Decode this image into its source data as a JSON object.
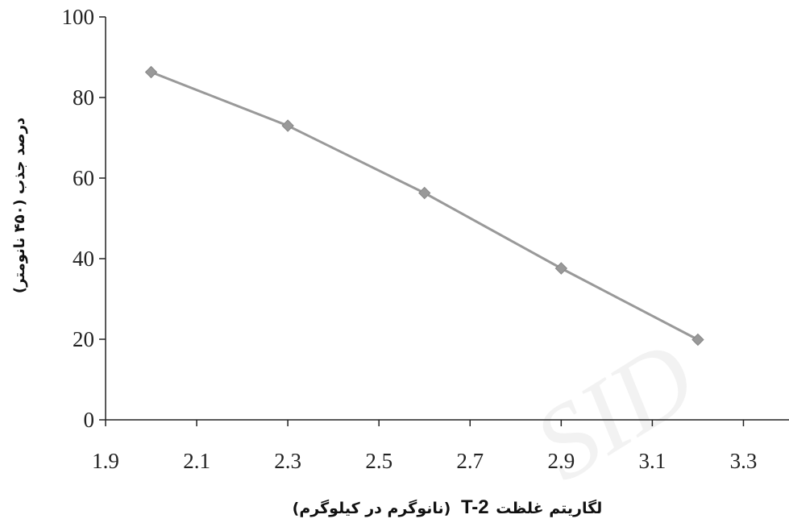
{
  "chart_data": {
    "type": "line",
    "title": "",
    "xlabel": "لگاریتم غلظت T-2 (نانوگرم در کیلوگرم)",
    "xlabel_rtl_text": "لگاریتم غلظت",
    "xlabel_latin_text": "T-2",
    "xlabel_units_text": "(نانوگرم در کیلوگرم)",
    "ylabel": "درصد جذب (۴۵۰ نانومتر)",
    "xlim": [
      1.9,
      3.4
    ],
    "ylim": [
      0,
      100
    ],
    "x_ticks": [
      1.9,
      2.1,
      2.3,
      2.5,
      2.7,
      2.9,
      3.1,
      3.3
    ],
    "x_tick_labels": [
      "1.9",
      "2.1",
      "2.3",
      "2.5",
      "2.7",
      "2.9",
      "3.1",
      "3.3"
    ],
    "y_ticks": [
      0,
      20,
      40,
      60,
      80,
      100
    ],
    "y_tick_labels": [
      "0",
      "20",
      "40",
      "60",
      "80",
      "100"
    ],
    "grid": false,
    "legend": "none",
    "marker": "diamond",
    "series_color": "#999999",
    "axis_color": "#222222",
    "series": [
      {
        "x": [
          2.0,
          2.3,
          2.6,
          2.9,
          3.2
        ],
        "values": [
          86.3,
          73.0,
          56.3,
          37.6,
          19.9
        ]
      }
    ]
  }
}
